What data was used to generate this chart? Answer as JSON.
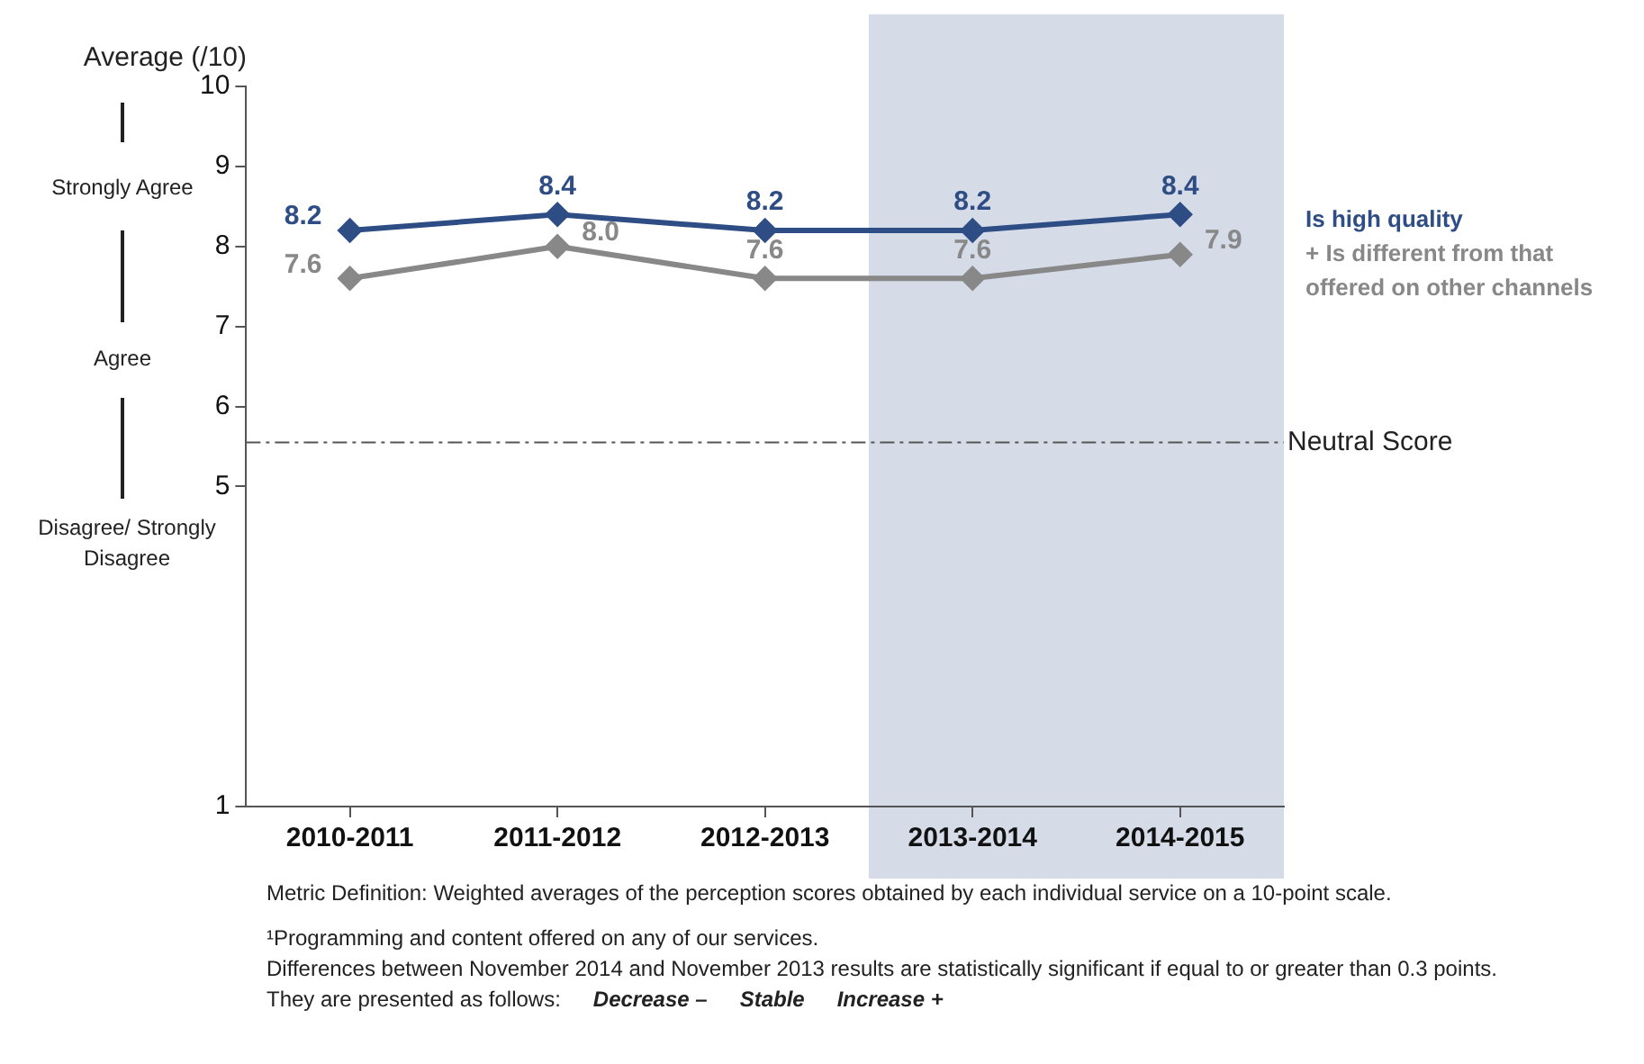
{
  "chart_data": {
    "type": "line",
    "ylabel": "Average (/10)",
    "categories": [
      "2010-2011",
      "2011-2012",
      "2012-2013",
      "2013-2014",
      "2014-2015"
    ],
    "series": [
      {
        "name": "Is high quality",
        "color": "#2e4d85",
        "values": [
          8.2,
          8.4,
          8.2,
          8.2,
          8.4
        ],
        "value_labels": [
          "8.2",
          "8.4",
          "8.2",
          "8.2",
          "8.4"
        ]
      },
      {
        "name": "+ Is different from that offered on other channels",
        "color": "#888888",
        "values": [
          7.6,
          8.0,
          7.6,
          7.6,
          7.9
        ],
        "value_labels": [
          "7.6",
          "8.0",
          "7.6",
          "7.6",
          "7.9"
        ]
      }
    ],
    "ylim": [
      1,
      10
    ],
    "yticks": [
      1,
      5,
      6,
      7,
      8,
      9,
      10
    ],
    "marker": "diamond",
    "line_style": "solid",
    "grid": false,
    "legend": "right",
    "ref_lines": [
      {
        "axis": "y",
        "value": 5.55,
        "label": "Neutral Score",
        "color": "#555555",
        "line_style": "dashed"
      }
    ],
    "bands": [
      {
        "axis": "x",
        "from": "2013-2014",
        "to": "2014-2015",
        "color": "#d5dce7"
      }
    ],
    "annotations": [
      "Strongly Agree",
      "Agree",
      "Disagree/ Strongly Disagree",
      "Metric Definition: Weighted averages of the perception scores obtained by each individual service on a 10-point scale.",
      "¹Programming and content offered on any of our services.",
      "Differences between November 2014 and November 2013 results are statistically significant if equal to or greater than 0.3 points.",
      "They are presented as follows:",
      "Decrease –",
      "Stable",
      "Increase +"
    ]
  }
}
